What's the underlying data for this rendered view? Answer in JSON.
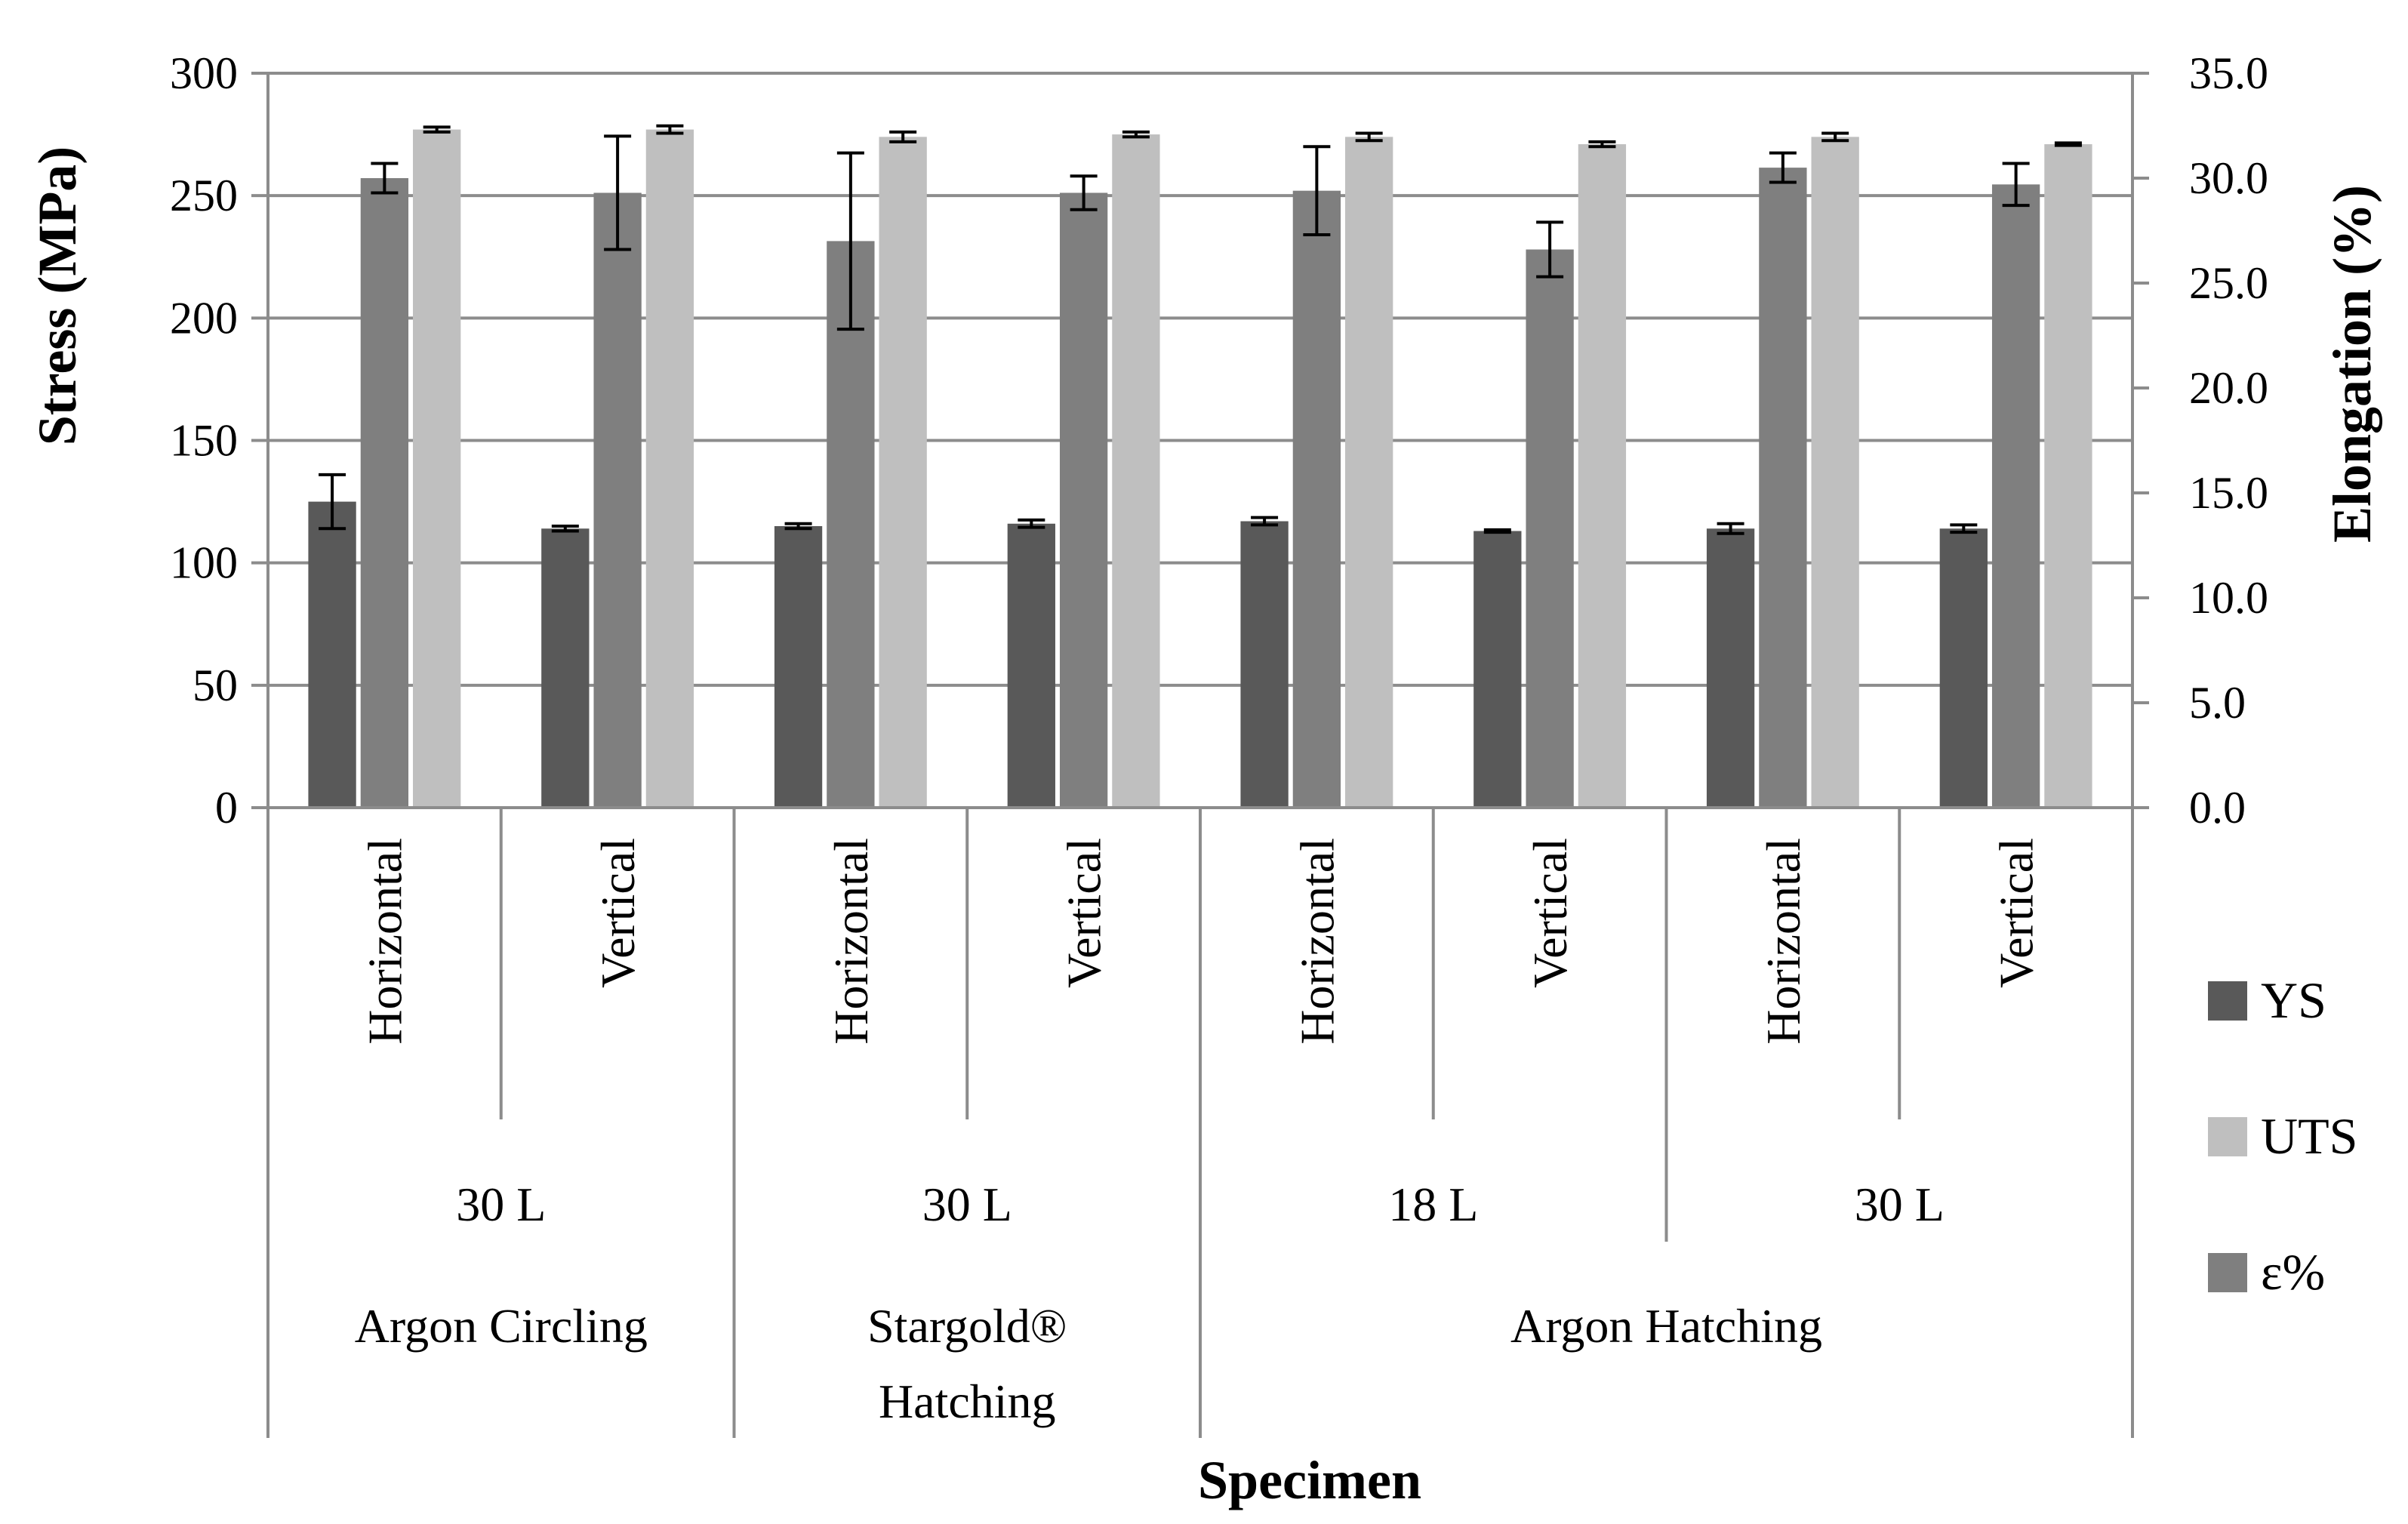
{
  "chart_data": {
    "type": "bar",
    "title": "",
    "xlabel": "Specimen",
    "ylabel": "Stress (MPa)",
    "y2label": "Elongation (%)",
    "ylim": [
      0,
      300
    ],
    "y2lim": [
      0,
      35
    ],
    "yticks": [
      "0",
      "50",
      "100",
      "150",
      "200",
      "250",
      "300"
    ],
    "y2ticks": [
      "0.0",
      "5.0",
      "10.0",
      "15.0",
      "20.0",
      "25.0",
      "30.0",
      "35.0"
    ],
    "grid": true,
    "legend_position": "right",
    "categories": [
      "Horizontal",
      "Vertical",
      "Horizontal",
      "Vertical",
      "Horizontal",
      "Vertical",
      "Horizontal",
      "Vertical"
    ],
    "subgroups": [
      {
        "label": "30 L",
        "span": 2
      },
      {
        "label": "30 L",
        "span": 2
      },
      {
        "label": "18 L",
        "span": 2
      },
      {
        "label": "30 L",
        "span": 2
      }
    ],
    "groups": [
      {
        "label": "Argon Circling",
        "lines": [
          "Argon Circling"
        ],
        "span": 2
      },
      {
        "label": "Stargold® Hatching",
        "lines": [
          "Stargold®",
          "Hatching"
        ],
        "span": 2
      },
      {
        "label": "Argon Hatching",
        "lines": [
          "Argon Hatching"
        ],
        "span": 4
      }
    ],
    "series": [
      {
        "name": "YS",
        "axis": "left",
        "color": "#595959",
        "values": [
          125,
          114,
          115,
          116,
          117,
          113,
          114,
          114
        ],
        "errors": [
          11,
          1,
          1,
          1.5,
          1.5,
          0.5,
          2,
          1.5
        ]
      },
      {
        "name": "ε%",
        "axis": "right",
        "color": "#7f7f7f",
        "values": [
          30.0,
          29.3,
          27.0,
          29.3,
          29.4,
          26.6,
          30.5,
          29.7
        ],
        "errors": [
          0.7,
          2.7,
          4.2,
          0.8,
          2.1,
          1.3,
          0.7,
          1.0
        ]
      },
      {
        "name": "UTS",
        "axis": "left",
        "color": "#bfbfbf",
        "values": [
          277,
          277,
          274,
          275,
          274,
          271,
          274,
          271
        ],
        "errors": [
          1,
          1.5,
          2,
          1,
          1.5,
          1,
          1.5,
          0.5
        ]
      }
    ],
    "legend": [
      {
        "name": "YS",
        "color": "#595959"
      },
      {
        "name": "UTS",
        "color": "#bfbfbf"
      },
      {
        "name": "ε%",
        "color": "#7f7f7f"
      }
    ]
  }
}
